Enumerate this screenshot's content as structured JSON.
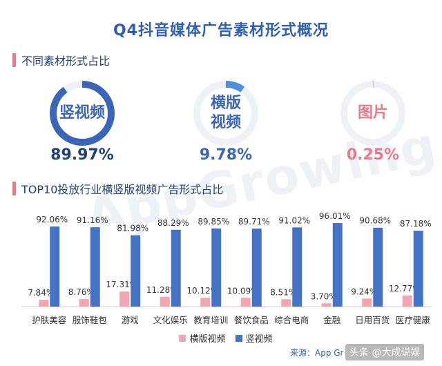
{
  "title": "Q4抖音媒体广告素材形式概况",
  "section1": "不同素材形式占比",
  "section2": "TOP10投放行业横竖版视频广告形式占比",
  "watermark": "AppGrowing",
  "rings": [
    {
      "label_lines": [
        "竖视频"
      ],
      "value": 89.97,
      "pct_text": "89.97%",
      "color": "#3a65b8",
      "text_color": "#3a65b8",
      "pct_color": "#1f3f7a"
    },
    {
      "label_lines": [
        "横版",
        "视频"
      ],
      "value": 9.78,
      "pct_text": "9.78%",
      "color": "#4a8fe0",
      "text_color": "#3a65b8",
      "pct_color": "#3a65b8"
    },
    {
      "label_lines": [
        "图片"
      ],
      "value": 0.25,
      "pct_text": "0.25%",
      "color": "#e97b8a",
      "text_color": "#e97b8a",
      "pct_color": "#e97b8a"
    }
  ],
  "legend": {
    "horizontal": "横版视频",
    "vertical": "竖视频"
  },
  "source": "来源：App Gr",
  "credit": "头条 @大成说娱",
  "chart_data": {
    "type": "bar",
    "title": "TOP10投放行业横竖版视频广告形式占比",
    "categories": [
      "护肤美容",
      "服饰鞋包",
      "游戏",
      "文化娱乐",
      "教育培训",
      "餐饮食品",
      "综合电商",
      "金融",
      "日用百货",
      "医疗健康"
    ],
    "series": [
      {
        "name": "横版视频",
        "color": "#f4a6b0",
        "values": [
          7.84,
          8.76,
          17.31,
          11.28,
          10.12,
          10.09,
          8.51,
          3.7,
          9.24,
          12.77
        ],
        "labels": [
          "7.84%",
          "8.76%",
          "17.31%",
          "11.28%",
          "10.12%",
          "10.09%",
          "8.51%",
          "3.70%",
          "9.24%",
          "12.77%"
        ]
      },
      {
        "name": "竖视频",
        "color": "#4472c4",
        "values": [
          92.06,
          91.16,
          81.98,
          88.29,
          89.85,
          89.71,
          91.02,
          96.01,
          90.68,
          87.18
        ],
        "labels": [
          "92.06%",
          "91.16%",
          "81.98%",
          "88.29%",
          "89.85%",
          "89.71%",
          "91.02%",
          "96.01%",
          "90.68%",
          "87.18%"
        ]
      }
    ],
    "ylim": [
      0,
      100
    ],
    "legend_position": "bottom"
  }
}
